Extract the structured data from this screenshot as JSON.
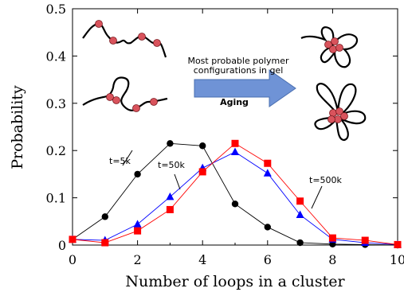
{
  "chart_data": {
    "type": "line",
    "xlabel": "Number of loops in a cluster",
    "ylabel": "Probability",
    "xlim": [
      0,
      10
    ],
    "ylim": [
      0,
      0.5
    ],
    "xticks": [
      "0",
      "2",
      "4",
      "6",
      "8",
      "10"
    ],
    "yticks": [
      "0",
      "0.1",
      "0.2",
      "0.3",
      "0.4",
      "0.5"
    ],
    "grid": false,
    "series": [
      {
        "name": "t=5k",
        "color": "#000000",
        "marker": "circle",
        "x": [
          0,
          1,
          2,
          3,
          4,
          5,
          6,
          7,
          8,
          9,
          10
        ],
        "y": [
          0.012,
          0.06,
          0.15,
          0.215,
          0.21,
          0.087,
          0.038,
          0.005,
          0.002,
          0.001,
          0.0
        ]
      },
      {
        "name": "t=50k",
        "color": "#0000ff",
        "marker": "triangle",
        "x": [
          0,
          1,
          2,
          3,
          4,
          5,
          6,
          7,
          8,
          9,
          10
        ],
        "y": [
          0.012,
          0.01,
          0.044,
          0.102,
          0.163,
          0.197,
          0.152,
          0.064,
          0.012,
          0.005,
          0.001
        ]
      },
      {
        "name": "t=500k",
        "color": "#ff0000",
        "marker": "square",
        "x": [
          0,
          1,
          2,
          3,
          4,
          5,
          6,
          7,
          8,
          9,
          10
        ],
        "y": [
          0.012,
          0.005,
          0.03,
          0.075,
          0.155,
          0.215,
          0.173,
          0.093,
          0.015,
          0.01,
          0.001
        ]
      }
    ],
    "annotations": {
      "arrow_line1": "Most probable polymer",
      "arrow_line2": "configurations in gel",
      "arrow_label": "Aging"
    }
  }
}
